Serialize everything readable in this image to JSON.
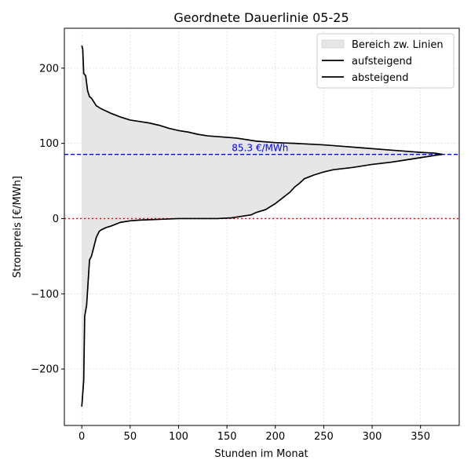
{
  "chart_data": {
    "type": "line",
    "title": "Geordnete Dauerlinie 05-25",
    "xlabel": "Stunden im Monat",
    "ylabel": "Strompreis [€/MWh]",
    "xlim": [
      -18,
      390
    ],
    "ylim": [
      -275,
      253
    ],
    "xticks": [
      0,
      50,
      100,
      150,
      200,
      250,
      300,
      350
    ],
    "yticks": [
      -200,
      -100,
      0,
      100,
      200
    ],
    "tick_labels_x": [
      "0",
      "50",
      "100",
      "150",
      "200",
      "250",
      "300",
      "350"
    ],
    "tick_labels_y": [
      "−200",
      "−100",
      "0",
      "100",
      "200"
    ],
    "grid": true,
    "legend_position": "top-right",
    "reference_lines": [
      {
        "y": 85.3,
        "label": "85.3 €/MWh",
        "color": "#0000ff",
        "style": "dashed"
      },
      {
        "y": 0,
        "label": "",
        "color": "#ff0000",
        "style": "dotted"
      }
    ],
    "fill_label": "Bereich zw. Linien",
    "series": [
      {
        "name": "aufsteigend",
        "x": [
          0,
          2,
          3,
          5,
          8,
          10,
          13,
          15,
          18,
          20,
          25,
          30,
          40,
          50,
          60,
          80,
          100,
          120,
          140,
          155,
          165,
          175,
          180,
          190,
          200,
          210,
          215,
          220,
          225,
          230,
          240,
          250,
          260,
          280,
          300,
          320,
          340,
          355,
          365,
          373
        ],
        "y": [
          -250,
          -215,
          -130,
          -115,
          -55,
          -50,
          -35,
          -25,
          -17,
          -15,
          -12,
          -10,
          -5,
          -3,
          -2,
          -1,
          0,
          0,
          0,
          1,
          3,
          5,
          8,
          12,
          20,
          30,
          35,
          42,
          47,
          53,
          58,
          62,
          65,
          68,
          72,
          75,
          79,
          82,
          84,
          85.3
        ]
      },
      {
        "name": "absteigend",
        "x": [
          0,
          1,
          2,
          4,
          6,
          8,
          10,
          15,
          20,
          25,
          30,
          40,
          50,
          60,
          70,
          80,
          90,
          100,
          110,
          120,
          130,
          150,
          160,
          170,
          180,
          200,
          220,
          250,
          270,
          290,
          310,
          330,
          350,
          365,
          373
        ],
        "y": [
          230,
          225,
          193,
          190,
          170,
          162,
          160,
          150,
          146,
          143,
          140,
          135,
          131,
          129,
          127,
          124,
          120,
          117,
          115,
          112,
          110,
          108,
          107,
          105,
          103,
          101,
          100,
          98,
          96,
          94,
          92,
          90,
          88,
          87,
          85.3
        ]
      }
    ],
    "colors": {
      "ascending": "#000000",
      "descending": "#000000",
      "fill": "#e6e6e6",
      "mean_line": "#0000ff",
      "zero_line": "#ff0000",
      "grid": "#d3d3d3"
    }
  }
}
